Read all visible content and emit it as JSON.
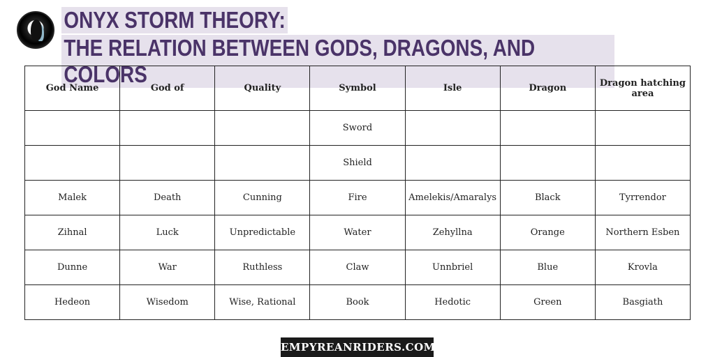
{
  "title": {
    "line1": "ONYX STORM THEORY:",
    "line2": "THE RELATION BETWEEN GODS, DRAGONS, AND COLORS"
  },
  "table": {
    "headers": [
      "God Name",
      "God of",
      "Quality",
      "Symbol",
      "Isle",
      "Dragon",
      "Dragon hatching area"
    ],
    "rows": [
      [
        "",
        "",
        "",
        "Sword",
        "",
        "",
        ""
      ],
      [
        "",
        "",
        "",
        "Shield",
        "",
        "",
        ""
      ],
      [
        "Malek",
        "Death",
        "Cunning",
        "Fire",
        "Amelekis/Amaralys",
        "Black",
        "Tyrrendor"
      ],
      [
        "Zihnal",
        "Luck",
        "Unpredictable",
        "Water",
        "Zehyllna",
        "Orange",
        "Northern Esben"
      ],
      [
        "Dunne",
        "War",
        "Ruthless",
        "Claw",
        "Unnbriel",
        "Blue",
        "Krovla"
      ],
      [
        "Hedeon",
        "Wisedom",
        "Wise, Rational",
        "Book",
        "Hedotic",
        "Green",
        "Basgiath"
      ]
    ]
  },
  "footer": {
    "label": "EMPYREANRIDERS.COM"
  },
  "colors": {
    "title_text": "#4a3368",
    "title_highlight": "#e6e1ec"
  }
}
